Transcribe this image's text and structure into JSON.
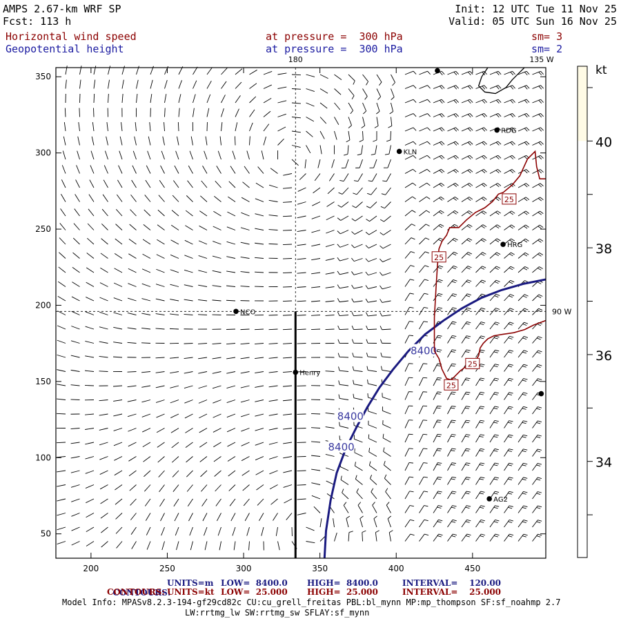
{
  "header": {
    "model": "AMPS 2.67-km WRF SP",
    "forecast": "Fcst: 113 h",
    "init": "Init: 12 UTC Tue 11 Nov 25",
    "valid": "Valid: 05 UTC Sun 16 Nov 25",
    "field1_name": "Horizontal wind speed",
    "field1_level": "at pressure =  300 hPa",
    "field1_smooth": "sm= 3",
    "field2_name": "Geopotential height",
    "field2_level": "at pressure =  300 hPa",
    "field2_smooth": "sm= 2"
  },
  "chart_data": {
    "type": "contour_map",
    "xlim": [
      177,
      498
    ],
    "ylim": [
      34,
      356
    ],
    "x_ticks": [
      200,
      250,
      300,
      350,
      400,
      450
    ],
    "y_ticks": [
      50,
      100,
      150,
      200,
      250,
      300,
      350
    ],
    "meridian_labels": [
      "180",
      "135 W",
      "90 W"
    ],
    "grid_lines": {
      "vertical_x": 334,
      "horizontal_y": 196
    },
    "stations": [
      {
        "name": "NCO",
        "x": 295,
        "y": 196
      },
      {
        "name": "Henry",
        "x": 334,
        "y": 156
      },
      {
        "name": "KLN",
        "x": 402,
        "y": 301
      },
      {
        "name": "RDG",
        "x": 466,
        "y": 315
      },
      {
        "name": "HRG",
        "x": 470,
        "y": 240
      },
      {
        "name": "AG2",
        "x": 461,
        "y": 73
      },
      {
        "name": "",
        "x": 427,
        "y": 354
      },
      {
        "name": "",
        "x": 495,
        "y": 142
      }
    ],
    "section_line": {
      "x": 334,
      "y_from": 34,
      "y_to": 196
    },
    "height_contour": {
      "label_value": "8400",
      "units": "m",
      "points": [
        [
          353,
          34
        ],
        [
          354,
          52
        ],
        [
          357,
          72
        ],
        [
          361,
          90
        ],
        [
          367,
          106
        ],
        [
          374,
          120
        ],
        [
          381,
          133
        ],
        [
          389,
          146
        ],
        [
          398,
          158
        ],
        [
          408,
          170
        ],
        [
          419,
          181
        ],
        [
          431,
          190
        ],
        [
          443,
          198
        ],
        [
          456,
          205
        ],
        [
          469,
          210
        ],
        [
          483,
          214
        ],
        [
          498,
          217
        ]
      ],
      "labels": [
        {
          "x": 364,
          "y": 107
        },
        {
          "x": 370,
          "y": 127
        },
        {
          "x": 418,
          "y": 170
        }
      ]
    },
    "speed_contour": {
      "label_value": "25",
      "units": "kt",
      "segments": [
        [
          [
            498,
            283
          ],
          [
            494,
            283
          ],
          [
            492,
            291
          ],
          [
            491,
            301
          ],
          [
            489,
            299
          ],
          [
            486,
            296
          ],
          [
            481,
            285
          ],
          [
            476,
            279
          ],
          [
            470,
            274
          ],
          [
            467,
            273
          ],
          [
            463,
            268
          ],
          [
            458,
            264
          ],
          [
            452,
            261
          ],
          [
            446,
            256
          ],
          [
            441,
            251
          ],
          [
            435,
            251
          ],
          [
            433,
            246
          ],
          [
            430,
            242
          ],
          [
            428,
            237
          ],
          [
            427,
            226
          ],
          [
            426,
            210
          ],
          [
            425,
            192
          ],
          [
            425,
            180
          ],
          [
            425,
            170
          ],
          [
            428,
            165
          ],
          [
            430,
            158
          ],
          [
            433,
            152
          ],
          [
            436,
            151
          ],
          [
            439,
            154
          ],
          [
            442,
            157
          ],
          [
            446,
            160
          ],
          [
            448,
            161
          ],
          [
            451,
            162
          ],
          [
            454,
            167
          ],
          [
            455,
            172
          ],
          [
            457,
            175
          ],
          [
            460,
            178
          ],
          [
            464,
            180
          ],
          [
            470,
            181
          ],
          [
            477,
            182
          ],
          [
            484,
            184
          ],
          [
            490,
            187
          ],
          [
            498,
            190
          ]
        ]
      ],
      "labels": [
        {
          "x": 474,
          "y": 270
        },
        {
          "x": 428,
          "y": 232
        },
        {
          "x": 450,
          "y": 162
        },
        {
          "x": 436,
          "y": 148
        }
      ]
    },
    "coast_contour": [
      [
        460,
        356
      ],
      [
        456,
        350
      ],
      [
        454,
        344
      ],
      [
        458,
        340
      ],
      [
        465,
        339
      ],
      [
        472,
        343
      ],
      [
        476,
        348
      ],
      [
        480,
        352
      ],
      [
        484,
        356
      ]
    ],
    "colorbar": {
      "unit": "kt",
      "tick_values": [
        34,
        36,
        38,
        40
      ],
      "range": [
        32.2,
        41.4
      ],
      "fill_from": 40,
      "fill_color": "#fffbe6"
    },
    "colors": {
      "height": "#1a1a80",
      "speed": "#8b0000",
      "barb": "#000000"
    }
  },
  "footer": {
    "line1_label": "CONTOURS:",
    "line1_units": "UNITS=m",
    "line1_low": "LOW=  8400.0",
    "line1_high": "HIGH=  8400.0",
    "line1_interval": "INTERVAL=    120.00",
    "line2_label": "CONTOURS:",
    "line2_units": "UNITS=kt",
    "line2_low": "LOW=  25.000",
    "line2_high": "HIGH=  25.000",
    "line2_interval": "INTERVAL=    25.000",
    "model_info": "Model Info: MPASv8.2.3-194-gf29cd82c CU:cu_grell_freitas PBL:bl_mynn MP:mp_thompson SF:sf_noahmp 2.7",
    "model_info2": "LW:rrtmg_lw SW:rrtmg_sw SFLAY:sf_mynn"
  }
}
